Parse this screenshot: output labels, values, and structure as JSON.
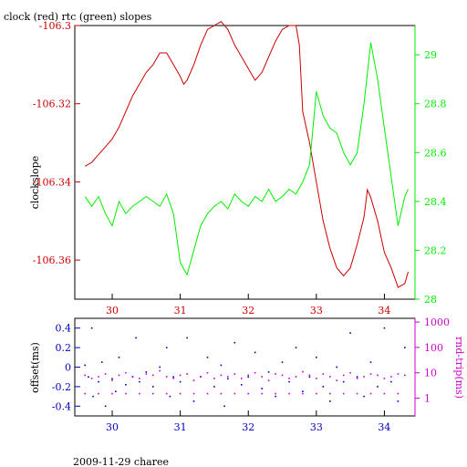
{
  "figure": {
    "title": "clock (red) rtc (green) slopes",
    "footer": "2009-11-29 charee"
  },
  "colors": {
    "red": "#cc0000",
    "green": "#00ee00",
    "blue": "#0000bb",
    "magenta": "#cc00cc",
    "black": "#000000"
  },
  "chart_data": [
    {
      "type": "line",
      "title": "clock (red) rtc (green) slopes",
      "xlim": [
        29.45,
        34.45
      ],
      "x_ticks": [
        30,
        31,
        32,
        33,
        34
      ],
      "x_tick_labels": [
        "30",
        "31",
        "32",
        "33",
        "34"
      ],
      "y_left": {
        "label": "clockslope",
        "lim": [
          -106.37,
          -106.3
        ],
        "ticks": [
          -106.3,
          -106.32,
          -106.34,
          -106.36
        ],
        "tick_labels": [
          "-106.3",
          "-106.32",
          "-106.34",
          "-106.36"
        ]
      },
      "y_right": {
        "label": "",
        "lim": [
          28.0,
          29.12
        ],
        "ticks": [
          28.0,
          28.2,
          28.4,
          28.6,
          28.8,
          29.0
        ],
        "tick_labels": [
          "28",
          "28.2",
          "28.4",
          "28.6",
          "28.8",
          "29"
        ]
      },
      "series": [
        {
          "name": "clock",
          "axis": "left",
          "x": [
            29.6,
            29.7,
            29.8,
            29.9,
            30.0,
            30.1,
            30.2,
            30.3,
            30.4,
            30.5,
            30.6,
            30.7,
            30.8,
            30.9,
            31.0,
            31.05,
            31.1,
            31.2,
            31.3,
            31.4,
            31.5,
            31.6,
            31.7,
            31.8,
            31.9,
            32.0,
            32.1,
            32.2,
            32.3,
            32.4,
            32.5,
            32.6,
            32.7,
            32.75,
            32.8,
            32.9,
            33.0,
            33.1,
            33.2,
            33.3,
            33.4,
            33.5,
            33.6,
            33.7,
            33.75,
            33.8,
            33.9,
            34.0,
            34.1,
            34.2,
            34.3,
            34.35
          ],
          "y": [
            -106.336,
            -106.335,
            -106.333,
            -106.331,
            -106.329,
            -106.326,
            -106.322,
            -106.318,
            -106.315,
            -106.312,
            -106.31,
            -106.307,
            -106.307,
            -106.31,
            -106.313,
            -106.315,
            -106.314,
            -106.31,
            -106.305,
            -106.301,
            -106.3,
            -106.299,
            -106.301,
            -106.305,
            -106.308,
            -106.311,
            -106.314,
            -106.312,
            -106.308,
            -106.304,
            -106.301,
            -106.3,
            -106.3,
            -106.305,
            -106.322,
            -106.33,
            -106.34,
            -106.35,
            -106.357,
            -106.362,
            -106.364,
            -106.362,
            -106.356,
            -106.349,
            -106.342,
            -106.344,
            -106.35,
            -106.358,
            -106.362,
            -106.367,
            -106.366,
            -106.363
          ]
        },
        {
          "name": "rtc",
          "axis": "right",
          "x": [
            29.6,
            29.7,
            29.8,
            29.9,
            30.0,
            30.1,
            30.2,
            30.3,
            30.4,
            30.5,
            30.6,
            30.7,
            30.8,
            30.9,
            31.0,
            31.1,
            31.2,
            31.3,
            31.4,
            31.5,
            31.6,
            31.7,
            31.8,
            31.9,
            32.0,
            32.1,
            32.2,
            32.3,
            32.4,
            32.5,
            32.6,
            32.7,
            32.8,
            32.9,
            33.0,
            33.1,
            33.2,
            33.3,
            33.4,
            33.5,
            33.6,
            33.7,
            33.8,
            33.9,
            34.0,
            34.1,
            34.2,
            34.3,
            34.35
          ],
          "y": [
            28.42,
            28.38,
            28.42,
            28.35,
            28.3,
            28.4,
            28.35,
            28.38,
            28.4,
            28.42,
            28.4,
            28.38,
            28.43,
            28.35,
            28.15,
            28.1,
            28.2,
            28.3,
            28.35,
            28.38,
            28.4,
            28.37,
            28.43,
            28.4,
            28.38,
            28.42,
            28.4,
            28.45,
            28.4,
            28.42,
            28.45,
            28.43,
            28.48,
            28.55,
            28.85,
            28.75,
            28.7,
            28.68,
            28.6,
            28.55,
            28.6,
            28.8,
            29.05,
            28.9,
            28.7,
            28.5,
            28.3,
            28.42,
            28.45
          ]
        }
      ]
    },
    {
      "type": "scatter",
      "xlim": [
        29.45,
        34.45
      ],
      "x_ticks": [
        30,
        31,
        32,
        33,
        34
      ],
      "x_tick_labels": [
        "30",
        "31",
        "32",
        "33",
        "34"
      ],
      "y_left": {
        "label": "offset(ms)",
        "lim": [
          -0.5,
          0.5
        ],
        "ticks": [
          0.4,
          0.2,
          0,
          -0.2,
          -0.4
        ],
        "tick_labels": [
          "0.4",
          "0.2",
          "0",
          "-0.2",
          "-0.4"
        ]
      },
      "y_right": {
        "label": "rnd-trip(ms)",
        "scale": "log",
        "lim": [
          0.2,
          1400
        ],
        "ticks": [
          1,
          10,
          100,
          1000
        ],
        "tick_labels": [
          "1",
          "10",
          "100",
          "1000"
        ]
      },
      "series": [
        {
          "name": "offset",
          "axis": "left",
          "x": [
            29.6,
            29.65,
            29.7,
            29.72,
            29.8,
            29.85,
            29.9,
            30.0,
            30.05,
            30.1,
            30.2,
            30.3,
            30.35,
            30.4,
            30.5,
            30.6,
            30.7,
            30.8,
            30.85,
            30.9,
            31.0,
            31.1,
            31.2,
            31.3,
            31.4,
            31.5,
            31.6,
            31.65,
            31.7,
            31.8,
            31.9,
            32.0,
            32.1,
            32.2,
            32.3,
            32.4,
            32.5,
            32.6,
            32.7,
            32.8,
            32.9,
            33.0,
            33.1,
            33.2,
            33.3,
            33.4,
            33.5,
            33.6,
            33.7,
            33.8,
            33.9,
            34.0,
            34.1,
            34.2,
            34.3
          ],
          "y": [
            0.02,
            -0.1,
            0.4,
            -0.3,
            -0.15,
            0.05,
            -0.4,
            -0.12,
            -0.25,
            0.1,
            -0.18,
            -0.1,
            0.3,
            -0.15,
            -0.05,
            -0.2,
            0.0,
            0.2,
            -0.3,
            -0.1,
            -0.15,
            0.3,
            -0.35,
            -0.1,
            0.1,
            -0.2,
            0.02,
            -0.4,
            -0.12,
            0.25,
            -0.18,
            -0.1,
            0.15,
            -0.22,
            -0.05,
            -0.3,
            0.05,
            -0.15,
            0.2,
            -0.25,
            -0.1,
            0.1,
            -0.2,
            -0.35,
            0.0,
            -0.15,
            0.35,
            -0.1,
            -0.3,
            0.05,
            -0.2,
            0.4,
            -0.15,
            -0.35,
            0.2
          ]
        },
        {
          "name": "rnd-trip",
          "axis": "right",
          "x": [
            29.6,
            29.7,
            29.8,
            29.9,
            30.0,
            30.1,
            30.2,
            30.3,
            30.4,
            30.5,
            30.6,
            30.7,
            30.8,
            30.9,
            31.0,
            31.1,
            31.2,
            31.3,
            31.4,
            31.5,
            31.6,
            31.7,
            31.8,
            31.9,
            32.0,
            32.1,
            32.2,
            32.3,
            32.4,
            32.5,
            32.6,
            32.7,
            32.8,
            32.9,
            33.0,
            33.1,
            33.2,
            33.3,
            33.4,
            33.5,
            33.6,
            33.7,
            33.8,
            33.9,
            34.0,
            34.1,
            34.2,
            34.3
          ],
          "y": [
            8,
            6,
            7,
            9,
            5,
            8,
            10,
            7,
            6,
            9,
            8,
            12,
            7,
            6,
            8,
            9,
            5,
            7,
            10,
            6,
            8,
            7,
            9,
            6,
            8,
            10,
            7,
            5,
            9,
            8,
            6,
            7,
            11,
            8,
            6,
            9,
            7,
            5,
            8,
            10,
            6,
            7,
            9,
            8,
            6,
            7,
            9,
            8
          ]
        },
        {
          "name": "rnd-trip-floor",
          "axis": "right",
          "x": [
            29.6,
            29.8,
            30.0,
            30.2,
            30.4,
            30.6,
            30.8,
            31.0,
            31.2,
            31.4,
            31.6,
            31.8,
            32.0,
            32.2,
            32.4,
            32.6,
            32.8,
            33.0,
            33.2,
            33.4,
            33.6,
            33.8,
            34.0,
            34.2
          ],
          "y": [
            1.5,
            1.5,
            1.5,
            1.5,
            1.5,
            1.5,
            1.5,
            1.5,
            1.5,
            1.5,
            1.5,
            1.5,
            1.5,
            1.5,
            1.5,
            1.5,
            1.5,
            1.5,
            1.5,
            1.5,
            1.5,
            1.5,
            1.5,
            1.5
          ]
        }
      ]
    }
  ]
}
